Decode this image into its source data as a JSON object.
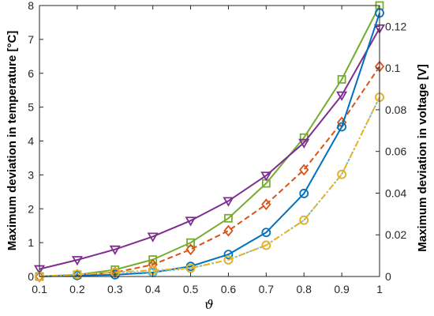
{
  "chart_data": {
    "type": "line",
    "x": [
      0.1,
      0.2,
      0.3,
      0.4,
      0.5,
      0.6,
      0.7,
      0.8,
      0.9,
      1.0
    ],
    "xlabel": "ϑ",
    "ylabel_left": "Maximum deviation in temperature [°C]",
    "ylabel_right": "Maximum deviation in voltage [V]",
    "xlim": [
      0.1,
      1.0
    ],
    "ylim_left": [
      0,
      8
    ],
    "ylim_right": [
      0,
      0.13
    ],
    "xticks": [
      "0.1",
      "0.2",
      "0.3",
      "0.4",
      "0.5",
      "0.6",
      "0.7",
      "0.8",
      "0.9",
      "1"
    ],
    "yticks_left": [
      "0",
      "1",
      "2",
      "3",
      "4",
      "5",
      "6",
      "7",
      "8"
    ],
    "yticks_right": [
      "0",
      "0.02",
      "0.04",
      "0.06",
      "0.08",
      "0.1",
      "0.12"
    ],
    "grid": false,
    "series": [
      {
        "axis": "left",
        "color": "#77AC30",
        "marker": "square",
        "dash": "solid",
        "values": [
          0.0,
          0.05,
          0.2,
          0.5,
          1.0,
          1.72,
          2.75,
          4.1,
          5.82,
          8.0
        ]
      },
      {
        "axis": "left",
        "color": "#7E2F8E",
        "marker": "triangle-down",
        "dash": "solid",
        "values": [
          0.22,
          0.49,
          0.8,
          1.18,
          1.65,
          2.23,
          2.98,
          3.95,
          5.35,
          7.33
        ]
      },
      {
        "axis": "left",
        "color": "#D95319",
        "marker": "diamond",
        "dash": "dashed",
        "values": [
          0.0,
          0.05,
          0.12,
          0.35,
          0.8,
          1.35,
          2.13,
          3.15,
          4.55,
          6.2
        ]
      },
      {
        "axis": "left",
        "color": "#0072BD",
        "marker": "circle",
        "dash": "solid",
        "values": [
          0.0,
          0.03,
          0.05,
          0.12,
          0.3,
          0.65,
          1.3,
          2.45,
          4.42,
          7.78
        ]
      },
      {
        "axis": "right",
        "color": "#4DBEEE",
        "marker": "circle",
        "dash": "dotted",
        "values": [
          0.0,
          0.001,
          0.002,
          0.002,
          0.004,
          0.008,
          0.015,
          0.027,
          0.049,
          0.086
        ]
      },
      {
        "axis": "right",
        "color": "#EDB120",
        "marker": "circle",
        "dash": "dashdot",
        "values": [
          0.0,
          0.001,
          0.002,
          0.003,
          0.004,
          0.008,
          0.015,
          0.027,
          0.049,
          0.086
        ]
      }
    ]
  }
}
